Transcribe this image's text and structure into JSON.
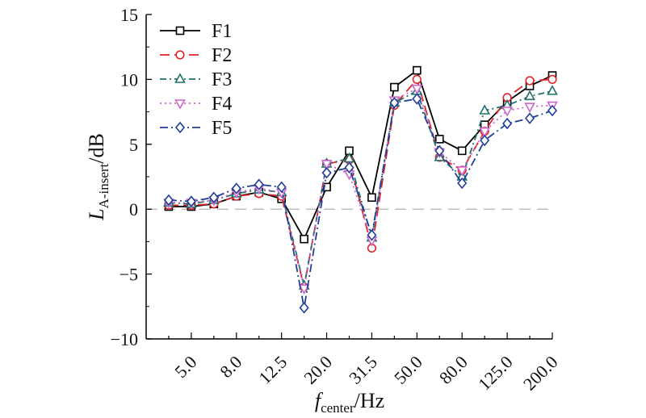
{
  "chart_data": {
    "type": "line",
    "categories": [
      "4.0",
      "5.0",
      "6.3",
      "8.0",
      "10.0",
      "12.5",
      "16.0",
      "20.0",
      "25.0",
      "31.5",
      "40.0",
      "50.0",
      "63.0",
      "80.0",
      "100.0",
      "125.0",
      "160.0",
      "200.0"
    ],
    "tick_labels": [
      "5.0",
      "8.0",
      "12.5",
      "20.0",
      "31.5",
      "50.0",
      "80.0",
      "125.0",
      "200.0"
    ],
    "xlabel": {
      "main": "f",
      "sub": "center",
      "rest": "/Hz"
    },
    "ylabel": {
      "main": "L",
      "sub": "A-insert",
      "rest": "/dB"
    },
    "ylim": [
      -10,
      15
    ],
    "yticks": [
      -10,
      -5,
      0,
      5,
      10,
      15
    ],
    "ytick_labels": [
      "−10",
      "−5",
      "0",
      "5",
      "10",
      "15"
    ],
    "zero_reference_line": true,
    "legend_position": "top-left",
    "series": [
      {
        "name": "F1",
        "color": "#000000",
        "marker": "square",
        "dash": "",
        "values": [
          0.2,
          0.2,
          0.4,
          1.0,
          1.3,
          0.8,
          -2.3,
          1.7,
          4.5,
          0.9,
          9.4,
          10.7,
          5.4,
          4.5,
          6.5,
          8.3,
          9.5,
          10.3
        ]
      },
      {
        "name": "F2",
        "color": "#e0242a",
        "marker": "circle",
        "dash": "12,6",
        "values": [
          0.3,
          0.3,
          0.4,
          1.0,
          1.2,
          1.0,
          -6.0,
          3.5,
          3.8,
          -3.0,
          8.0,
          10.0,
          4.0,
          3.0,
          6.0,
          8.6,
          9.9,
          10.0
        ]
      },
      {
        "name": "F3",
        "color": "#1f6f6a",
        "marker": "triangle-up",
        "dash": "8,4,2,4",
        "values": [
          0.5,
          0.4,
          0.7,
          1.2,
          1.5,
          1.3,
          -5.9,
          3.5,
          3.9,
          -2.2,
          8.2,
          9.1,
          4.0,
          2.5,
          7.6,
          8.0,
          8.7,
          9.1
        ]
      },
      {
        "name": "F4",
        "color": "#cc66cc",
        "marker": "triangle-down",
        "dash": "2,4",
        "values": [
          0.5,
          0.5,
          0.7,
          1.3,
          1.6,
          1.3,
          -6.1,
          3.5,
          2.7,
          -2.4,
          8.4,
          9.3,
          4.4,
          3.0,
          6.0,
          7.6,
          7.9,
          8.0
        ]
      },
      {
        "name": "F5",
        "color": "#1f3f99",
        "marker": "diamond",
        "dash": "10,4,2,4",
        "values": [
          0.7,
          0.6,
          0.9,
          1.6,
          1.9,
          1.7,
          -7.6,
          2.8,
          3.2,
          -2.0,
          8.2,
          8.5,
          4.5,
          2.0,
          5.3,
          6.6,
          7.0,
          7.6
        ]
      }
    ]
  }
}
